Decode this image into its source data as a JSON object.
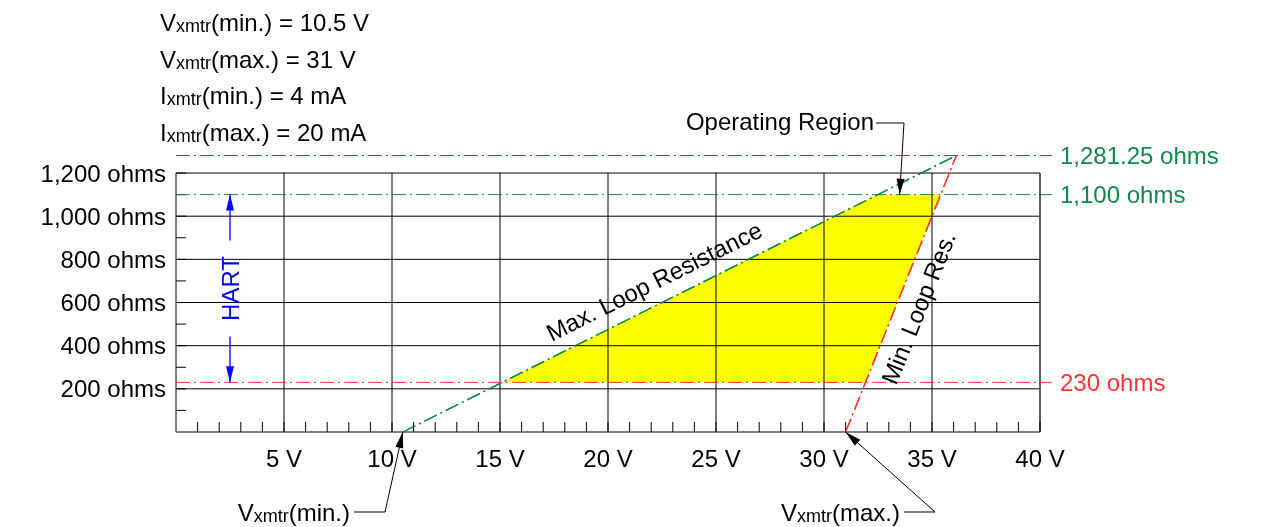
{
  "chart_data": {
    "type": "line",
    "xlim": [
      0,
      40
    ],
    "ylim": [
      0,
      1281.25
    ],
    "xticks": [
      {
        "value": 1,
        "label": null
      },
      {
        "value": 2,
        "label": null
      },
      {
        "value": 3,
        "label": null
      },
      {
        "value": 4,
        "label": null
      },
      {
        "value": 5,
        "label": "5 V"
      },
      {
        "value": 6,
        "label": null
      },
      {
        "value": 7,
        "label": null
      },
      {
        "value": 8,
        "label": null
      },
      {
        "value": 9,
        "label": null
      },
      {
        "value": 10,
        "label": "10 V"
      },
      {
        "value": 11,
        "label": null
      },
      {
        "value": 12,
        "label": null
      },
      {
        "value": 13,
        "label": null
      },
      {
        "value": 14,
        "label": null
      },
      {
        "value": 15,
        "label": "15 V"
      },
      {
        "value": 16,
        "label": null
      },
      {
        "value": 17,
        "label": null
      },
      {
        "value": 18,
        "label": null
      },
      {
        "value": 19,
        "label": null
      },
      {
        "value": 20,
        "label": "20 V"
      },
      {
        "value": 21,
        "label": null
      },
      {
        "value": 22,
        "label": null
      },
      {
        "value": 23,
        "label": null
      },
      {
        "value": 24,
        "label": null
      },
      {
        "value": 25,
        "label": "25 V"
      },
      {
        "value": 26,
        "label": null
      },
      {
        "value": 27,
        "label": null
      },
      {
        "value": 28,
        "label": null
      },
      {
        "value": 29,
        "label": null
      },
      {
        "value": 30,
        "label": "30 V"
      },
      {
        "value": 31,
        "label": null
      },
      {
        "value": 32,
        "label": null
      },
      {
        "value": 33,
        "label": null
      },
      {
        "value": 34,
        "label": null
      },
      {
        "value": 35,
        "label": "35 V"
      },
      {
        "value": 36,
        "label": null
      },
      {
        "value": 37,
        "label": null
      },
      {
        "value": 38,
        "label": null
      },
      {
        "value": 39,
        "label": null
      },
      {
        "value": 40,
        "label": "40 V"
      }
    ],
    "yticks": [
      {
        "value": 100,
        "label": null
      },
      {
        "value": 200,
        "label": "200 ohms"
      },
      {
        "value": 300,
        "label": null
      },
      {
        "value": 400,
        "label": "400 ohms"
      },
      {
        "value": 500,
        "label": null
      },
      {
        "value": 600,
        "label": "600 ohms"
      },
      {
        "value": 700,
        "label": null
      },
      {
        "value": 800,
        "label": "800 ohms"
      },
      {
        "value": 900,
        "label": null
      },
      {
        "value": 1000,
        "label": "1,000 ohms"
      },
      {
        "value": 1100,
        "label": null
      },
      {
        "value": 1200,
        "label": "1,200 ohms"
      }
    ],
    "grid": true,
    "series": [
      {
        "type": "area",
        "color": "#ffff00",
        "x": [
          15.1,
          32.5,
          35.4
        ],
        "values": [
          230,
          1100,
          1100
        ]
      },
      {
        "color": "#11884a",
        "line_style": "dashed",
        "x": [
          10.5,
          36.125
        ],
        "values": [
          0,
          1281.25
        ]
      },
      {
        "color": "#ff3333",
        "line_style": "dashed",
        "x": [
          31,
          36.125
        ],
        "values": [
          0,
          1281.25
        ]
      }
    ],
    "ref_lines": [
      {
        "axis": "y",
        "value": 1281.25,
        "label": "1,281.25 ohms",
        "color": "#11884a",
        "line_style": "dashed"
      },
      {
        "axis": "y",
        "value": 1100,
        "label": "1,100 ohms",
        "color": "#11884a",
        "line_style": "dashed"
      },
      {
        "axis": "y",
        "value": 230,
        "label": "230 ohms",
        "color": "#ff3333",
        "line_style": "dashed"
      }
    ],
    "annotations": [
      "V$_{xmtr}$(min.) = 10.5 V",
      "V$_{xmtr}$(max.) = 31 V",
      "I$_{xmtr}$(min.) = 4 mA",
      "I$_{xmtr}$(max.) = 20 mA",
      {
        "text": "Max. Loop Resistance",
        "x": 22.6,
        "y": 605
      },
      {
        "text": "Min. Loop Res.",
        "x": 33.45,
        "y": 612
      },
      {
        "text": "Operating Region",
        "x": 33.5,
        "y": 1100
      },
      {
        "text": "V$_{xmtr}$(min.)",
        "x": 10.5,
        "y": 0
      },
      {
        "text": "V$_{xmtr}$(max.)",
        "x": 31,
        "y": 0
      },
      {
        "text": "HART",
        "x": 2.5,
        "y": 1100
      }
    ]
  }
}
